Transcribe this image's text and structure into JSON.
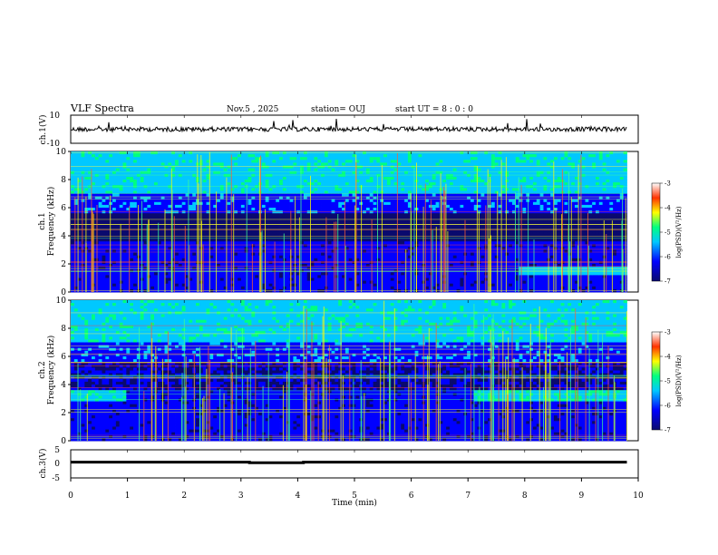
{
  "header": {
    "title": "VLF Spectra",
    "date": "Nov.5 , 2025",
    "station": "station= OUJ",
    "start": "start UT = 8 : 0 : 0"
  },
  "chart_data": [
    {
      "type": "line",
      "panel": "waveform ch.1",
      "ylabel": "ch.1(V)",
      "ylim": [
        -10,
        10
      ],
      "yticks": [
        "10",
        "-10"
      ],
      "baseline_value": 0,
      "color": "#000000"
    },
    {
      "type": "heatmap",
      "panel": "spectrogram ch.1",
      "ylabel": "ch.1\nFrequency (kHz)",
      "ylim": [
        0,
        10
      ],
      "yticks": [
        "0",
        "2",
        "4",
        "6",
        "8",
        "10"
      ],
      "colorbar": {
        "label": "log(PSD)(V²/Hz)",
        "range": [
          -7,
          -3
        ],
        "ticks": [
          "-3",
          "-4",
          "-5",
          "-6",
          "-7"
        ],
        "colors": [
          "#0a0a6e",
          "#0000ff",
          "#00c8ff",
          "#00ff80",
          "#ffff00",
          "#ff3300",
          "#ffffff"
        ]
      }
    },
    {
      "type": "heatmap",
      "panel": "spectrogram ch.2",
      "ylabel": "ch.2\nFrequency (kHz)",
      "ylim": [
        0,
        10
      ],
      "yticks": [
        "0",
        "2",
        "4",
        "6",
        "8",
        "10"
      ],
      "colorbar": {
        "label": "log(PSD)(V²/Hz)",
        "range": [
          -7,
          -3
        ],
        "ticks": [
          "-3",
          "-4",
          "-5",
          "-6",
          "-7"
        ],
        "colors": [
          "#0a0a6e",
          "#0000ff",
          "#00c8ff",
          "#00ff80",
          "#ffff00",
          "#ff3300",
          "#ffffff"
        ]
      }
    },
    {
      "type": "line",
      "panel": "ch.3 level",
      "ylabel": "ch.3(V)",
      "ylim": [
        -5,
        5
      ],
      "yticks": [
        "5",
        "0",
        "-5"
      ],
      "series": [
        {
          "name": "ch.3",
          "x": [
            0.0,
            3.15,
            3.15,
            4.1,
            4.1,
            9.8
          ],
          "y": [
            0.6,
            0.6,
            0.4,
            0.4,
            0.6,
            0.6
          ]
        }
      ]
    }
  ],
  "xaxis": {
    "label": "Time (min)",
    "range": [
      0,
      10
    ],
    "ticks": [
      "0",
      "1",
      "2",
      "3",
      "4",
      "5",
      "6",
      "7",
      "8",
      "9",
      "10"
    ],
    "data_end": 9.8
  }
}
